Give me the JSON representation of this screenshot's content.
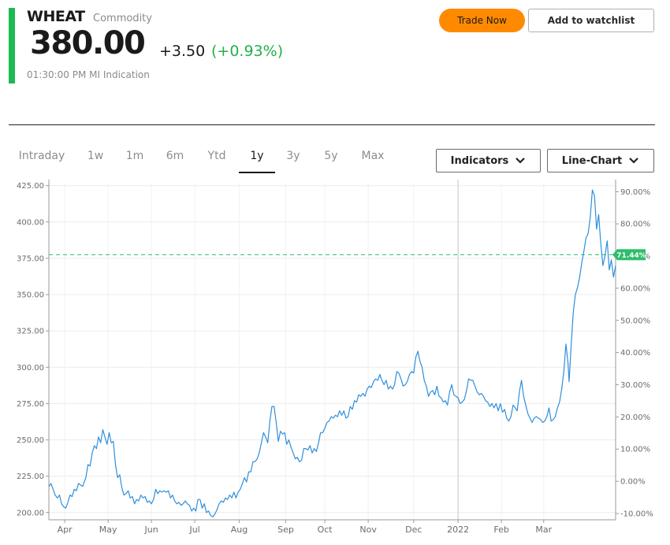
{
  "quote": {
    "symbol": "WHEAT",
    "asset_type": "Commodity",
    "price": "380.00",
    "change": "+3.50",
    "change_pct": "(+0.93%)",
    "time": "01:30:00 PM",
    "source": "MI Indication"
  },
  "actions": {
    "trade_label": "Trade Now",
    "watchlist_label": "Add to watchlist"
  },
  "ranges": [
    "Intraday",
    "1w",
    "1m",
    "6m",
    "Ytd",
    "1y",
    "3y",
    "5y",
    "Max"
  ],
  "active_range": "1y",
  "controls": {
    "indicators_label": "Indicators",
    "chart_type_label": "Line-Chart",
    "chevron_icon": "chevron-down-icon"
  },
  "colors": {
    "accent": "#1db954",
    "positive": "#22b04b",
    "trade_button": "#ff8a00",
    "line": "#2e8fdd",
    "reference": "#2ebd6b"
  },
  "chart_data": {
    "type": "line",
    "series": [
      {
        "values": [
          [
            0,
            218
          ],
          [
            2,
            220
          ],
          [
            4,
            216
          ],
          [
            6,
            212
          ],
          [
            8,
            210
          ],
          [
            10,
            212
          ],
          [
            12,
            206
          ],
          [
            14,
            204
          ],
          [
            16,
            203
          ],
          [
            18,
            207
          ],
          [
            20,
            212
          ],
          [
            22,
            211
          ],
          [
            24,
            216
          ],
          [
            26,
            215
          ],
          [
            28,
            220
          ],
          [
            30,
            219
          ],
          [
            32,
            218
          ],
          [
            35,
            224
          ],
          [
            37,
            233
          ],
          [
            39,
            232
          ],
          [
            41,
            241
          ],
          [
            43,
            246
          ],
          [
            45,
            244
          ],
          [
            47,
            252
          ],
          [
            49,
            248
          ],
          [
            51,
            257
          ],
          [
            53,
            252
          ],
          [
            55,
            247
          ],
          [
            57,
            255
          ],
          [
            59,
            248
          ],
          [
            61,
            249
          ],
          [
            63,
            233
          ],
          [
            65,
            224
          ],
          [
            67,
            226
          ],
          [
            69,
            217
          ],
          [
            71,
            212
          ],
          [
            73,
            213
          ],
          [
            75,
            215
          ],
          [
            77,
            210
          ],
          [
            79,
            211
          ],
          [
            81,
            206
          ],
          [
            83,
            209
          ],
          [
            85,
            208
          ],
          [
            87,
            212
          ],
          [
            89,
            210
          ],
          [
            91,
            211
          ],
          [
            93,
            207
          ],
          [
            95,
            208
          ],
          [
            97,
            206
          ],
          [
            99,
            209
          ],
          [
            101,
            216
          ],
          [
            103,
            213
          ],
          [
            105,
            215
          ],
          [
            107,
            214
          ],
          [
            109,
            215
          ],
          [
            111,
            214
          ],
          [
            113,
            215
          ],
          [
            115,
            210
          ],
          [
            117,
            212
          ],
          [
            119,
            208
          ],
          [
            121,
            206
          ],
          [
            123,
            207
          ],
          [
            125,
            205
          ],
          [
            127,
            206
          ],
          [
            129,
            208
          ],
          [
            131,
            206
          ],
          [
            133,
            205
          ],
          [
            135,
            201
          ],
          [
            137,
            203
          ],
          [
            139,
            201
          ],
          [
            141,
            209
          ],
          [
            143,
            209
          ],
          [
            145,
            203
          ],
          [
            147,
            206
          ],
          [
            149,
            200
          ],
          [
            151,
            201
          ],
          [
            153,
            198
          ],
          [
            155,
            197
          ],
          [
            157,
            199
          ],
          [
            159,
            202
          ],
          [
            161,
            206
          ],
          [
            163,
            208
          ],
          [
            165,
            207
          ],
          [
            167,
            210
          ],
          [
            169,
            209
          ],
          [
            171,
            212
          ],
          [
            173,
            210
          ],
          [
            175,
            214
          ],
          [
            177,
            210
          ],
          [
            179,
            214
          ],
          [
            181,
            216
          ],
          [
            183,
            220
          ],
          [
            185,
            224
          ],
          [
            187,
            221
          ],
          [
            189,
            228
          ],
          [
            191,
            228
          ],
          [
            193,
            235
          ],
          [
            195,
            235
          ],
          [
            197,
            237
          ],
          [
            199,
            241
          ],
          [
            201,
            248
          ],
          [
            203,
            255
          ],
          [
            205,
            252
          ],
          [
            207,
            248
          ],
          [
            209,
            263
          ],
          [
            211,
            273
          ],
          [
            213,
            273
          ],
          [
            215,
            262
          ],
          [
            217,
            249
          ],
          [
            219,
            256
          ],
          [
            221,
            254
          ],
          [
            223,
            255
          ],
          [
            225,
            247
          ],
          [
            227,
            250
          ],
          [
            229,
            245
          ],
          [
            231,
            241
          ],
          [
            233,
            237
          ],
          [
            235,
            238
          ],
          [
            237,
            235
          ],
          [
            239,
            236
          ],
          [
            241,
            244
          ],
          [
            243,
            244
          ],
          [
            245,
            243
          ],
          [
            247,
            246
          ],
          [
            249,
            241
          ],
          [
            251,
            244
          ],
          [
            253,
            242
          ],
          [
            255,
            248
          ],
          [
            257,
            255
          ],
          [
            259,
            255
          ],
          [
            261,
            258
          ],
          [
            263,
            262
          ],
          [
            265,
            263
          ],
          [
            267,
            266
          ],
          [
            269,
            265
          ],
          [
            271,
            267
          ],
          [
            273,
            266
          ],
          [
            275,
            270
          ],
          [
            277,
            267
          ],
          [
            279,
            270
          ],
          [
            281,
            265
          ],
          [
            283,
            266
          ],
          [
            285,
            273
          ],
          [
            287,
            271
          ],
          [
            289,
            277
          ],
          [
            291,
            276
          ],
          [
            293,
            281
          ],
          [
            295,
            280
          ],
          [
            297,
            282
          ],
          [
            299,
            280
          ],
          [
            301,
            285
          ],
          [
            303,
            287
          ],
          [
            305,
            286
          ],
          [
            307,
            290
          ],
          [
            309,
            292
          ],
          [
            311,
            291
          ],
          [
            313,
            295
          ],
          [
            315,
            291
          ],
          [
            317,
            288
          ],
          [
            319,
            291
          ],
          [
            321,
            285
          ],
          [
            323,
            287
          ],
          [
            325,
            285
          ],
          [
            327,
            288
          ],
          [
            329,
            297
          ],
          [
            331,
            296
          ],
          [
            333,
            292
          ],
          [
            335,
            287
          ],
          [
            337,
            288
          ],
          [
            339,
            290
          ],
          [
            341,
            295
          ],
          [
            343,
            297
          ],
          [
            345,
            296
          ],
          [
            347,
            307
          ],
          [
            349,
            311
          ],
          [
            351,
            304
          ],
          [
            353,
            300
          ],
          [
            355,
            291
          ],
          [
            357,
            287
          ],
          [
            359,
            280
          ],
          [
            361,
            283
          ],
          [
            363,
            284
          ],
          [
            365,
            281
          ],
          [
            367,
            287
          ],
          [
            369,
            280
          ],
          [
            371,
            279
          ],
          [
            373,
            276
          ],
          [
            375,
            277
          ],
          [
            377,
            274
          ],
          [
            379,
            283
          ],
          [
            381,
            288
          ],
          [
            383,
            281
          ],
          [
            385,
            280
          ],
          [
            387,
            279
          ],
          [
            389,
            275
          ],
          [
            391,
            276
          ],
          [
            393,
            278
          ],
          [
            395,
            284
          ],
          [
            397,
            292
          ],
          [
            399,
            291
          ],
          [
            401,
            291
          ],
          [
            403,
            287
          ],
          [
            405,
            283
          ],
          [
            407,
            281
          ],
          [
            409,
            282
          ],
          [
            411,
            280
          ],
          [
            413,
            277
          ],
          [
            415,
            276
          ],
          [
            417,
            273
          ],
          [
            419,
            275
          ],
          [
            421,
            272
          ],
          [
            423,
            275
          ],
          [
            425,
            270
          ],
          [
            427,
            275
          ],
          [
            429,
            269
          ],
          [
            431,
            271
          ],
          [
            433,
            265
          ],
          [
            435,
            263
          ],
          [
            437,
            266
          ],
          [
            439,
            274
          ],
          [
            441,
            272
          ],
          [
            443,
            270
          ],
          [
            445,
            283
          ],
          [
            447,
            291
          ],
          [
            449,
            280
          ],
          [
            451,
            274
          ],
          [
            453,
            268
          ],
          [
            455,
            265
          ],
          [
            457,
            262
          ],
          [
            459,
            265
          ],
          [
            461,
            266
          ],
          [
            463,
            265
          ],
          [
            465,
            264
          ],
          [
            467,
            262
          ],
          [
            469,
            263
          ],
          [
            471,
            266
          ],
          [
            473,
            272
          ],
          [
            475,
            263
          ],
          [
            477,
            264
          ],
          [
            479,
            266
          ],
          [
            481,
            272
          ],
          [
            483,
            276
          ],
          [
            485,
            285
          ],
          [
            487,
            297
          ],
          [
            489,
            316
          ],
          [
            491,
            303
          ],
          [
            492,
            290
          ],
          [
            494,
            316
          ],
          [
            496,
            338
          ],
          [
            498,
            350
          ],
          [
            500,
            355
          ],
          [
            502,
            362
          ],
          [
            504,
            372
          ],
          [
            506,
            380
          ],
          [
            508,
            389
          ],
          [
            510,
            392
          ],
          [
            512,
            403
          ],
          [
            514,
            422
          ],
          [
            516,
            418
          ],
          [
            518,
            395
          ],
          [
            520,
            405
          ],
          [
            522,
            385
          ],
          [
            524,
            370
          ],
          [
            526,
            377
          ],
          [
            528,
            387
          ],
          [
            530,
            367
          ],
          [
            532,
            374
          ],
          [
            534,
            362
          ],
          [
            536,
            370
          ]
        ]
      }
    ],
    "x_domain": [
      0,
      536
    ],
    "x_ticks": [
      {
        "label": "Apr",
        "x": 15
      },
      {
        "label": "May",
        "x": 56
      },
      {
        "label": "Jun",
        "x": 97
      },
      {
        "label": "Jul",
        "x": 138
      },
      {
        "label": "Aug",
        "x": 180
      },
      {
        "label": "Sep",
        "x": 224
      },
      {
        "label": "Oct",
        "x": 261
      },
      {
        "label": "Nov",
        "x": 302
      },
      {
        "label": "Dec",
        "x": 345
      },
      {
        "label": "2022",
        "x": 387
      },
      {
        "label": "Feb",
        "x": 428
      },
      {
        "label": "Mar",
        "x": 468
      }
    ],
    "ylim": [
      195,
      427
    ],
    "y_ticks": [
      "425.00",
      "400.00",
      "375.00",
      "350.00",
      "325.00",
      "300.00",
      "275.00",
      "250.00",
      "225.00",
      "200.00"
    ],
    "y_tick_values": [
      425,
      400,
      375,
      350,
      325,
      300,
      275,
      250,
      225,
      200
    ],
    "y2_ticks": [
      "90.00%",
      "80.00%",
      "70.00%",
      "60.00%",
      "50.00%",
      "40.00%",
      "30.00%",
      "20.00%",
      "10.00%",
      "0.00%",
      "-10.00%"
    ],
    "y2_tick_values": [
      90,
      80,
      70,
      60,
      50,
      40,
      30,
      20,
      10,
      0,
      -10
    ],
    "y2_base": 221.5,
    "reference_value": 377.5,
    "reference_label": "71.44%",
    "year_marker_x": 387,
    "grid": true
  }
}
